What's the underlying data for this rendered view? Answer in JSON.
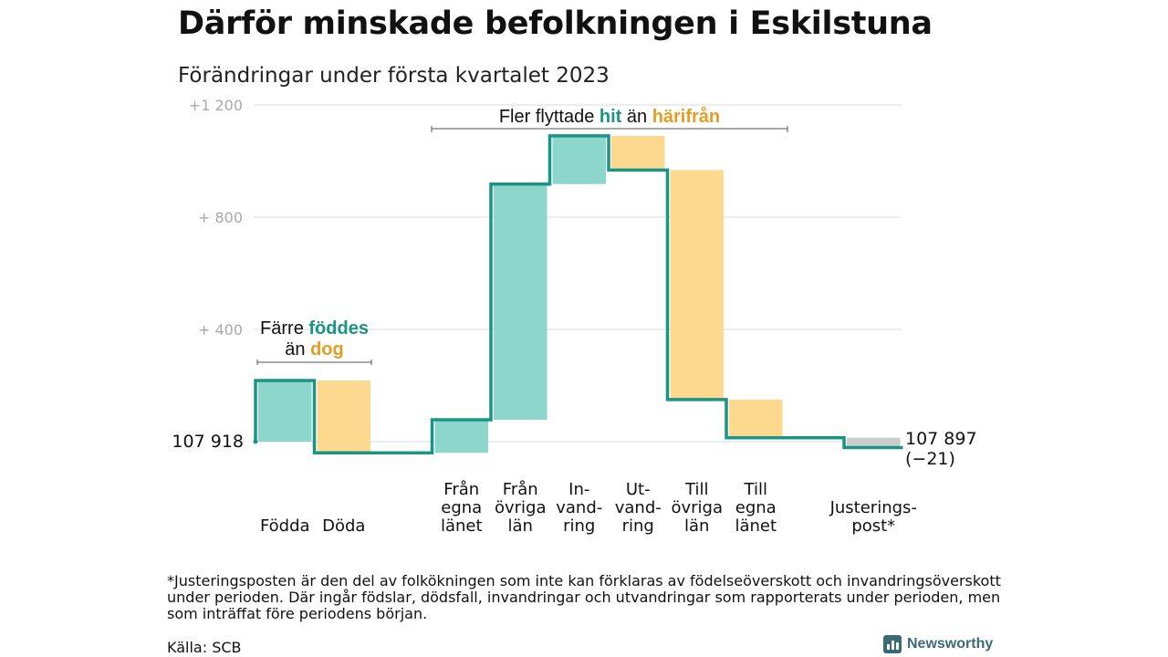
{
  "title": "Därför minskade befolkningen i Eskilstuna",
  "subtitle": "Förändringar under första kvartalet 2023",
  "colors": {
    "increase": "#8dd6cb",
    "decrease": "#fcd98f",
    "adjustment": "#cccccc",
    "line": "#1a9485",
    "hit": "#1a9485",
    "harifran": "#e89c22",
    "grid": "#e2e2e2",
    "tick": "#a9a9a9"
  },
  "chart_data": {
    "type": "waterfall",
    "start": {
      "value": 107918,
      "label": "107 918"
    },
    "end": {
      "value": 107897,
      "label": "107 897",
      "change_label": "(−21)"
    },
    "ylim": [
      -40,
      1200
    ],
    "yticks": [
      {
        "value": 400,
        "label": "+ 400"
      },
      {
        "value": 800,
        "label": "+ 800"
      },
      {
        "value": 1200,
        "label": "+1 200"
      }
    ],
    "steps": [
      {
        "lines": [
          "Födda"
        ],
        "delta": 218,
        "kind": "increase"
      },
      {
        "lines": [
          "Döda"
        ],
        "delta": -258,
        "kind": "decrease"
      },
      {
        "lines": [
          "Från",
          "egna",
          "länet"
        ],
        "delta": 118,
        "kind": "increase"
      },
      {
        "lines": [
          "Från",
          "övriga",
          "län"
        ],
        "delta": 840,
        "kind": "increase"
      },
      {
        "lines": [
          "In-",
          "vand-",
          "ring"
        ],
        "delta": 172,
        "kind": "increase"
      },
      {
        "lines": [
          "Ut-",
          "vand-",
          "ring"
        ],
        "delta": -122,
        "kind": "decrease"
      },
      {
        "lines": [
          "Till",
          "övriga",
          "län"
        ],
        "delta": -818,
        "kind": "decrease"
      },
      {
        "lines": [
          "Till",
          "egna",
          "länet"
        ],
        "delta": -136,
        "kind": "decrease"
      },
      {
        "lines": [
          "Justerings-",
          "post*"
        ],
        "delta": -35,
        "kind": "adjustment"
      }
    ],
    "annotations": [
      {
        "parts": [
          {
            "text": "Färre ",
            "style": "plain"
          },
          {
            "text": "föddes",
            "style": "hit"
          }
        ],
        "line2": [
          {
            "text": "än ",
            "style": "plain"
          },
          {
            "text": "dog",
            "style": "harifran"
          }
        ],
        "span": [
          0,
          1
        ]
      },
      {
        "parts": [
          {
            "text": "Fler flyttade ",
            "style": "plain"
          },
          {
            "text": "hit",
            "style": "hit"
          },
          {
            "text": " än ",
            "style": "plain"
          },
          {
            "text": "härifrån",
            "style": "harifran"
          }
        ],
        "span": [
          2,
          7
        ]
      }
    ]
  },
  "footnote": "*Justeringsposten är den del av folkökningen som inte kan förklaras av födelseöverskott och invandringsöverskott under perioden. Där ingår födslar, dödsfall, invandringar och utvandringar som rapporterats under perioden, men som inträffat före periodens början.",
  "source": "Källa: SCB",
  "logo": {
    "text": "Newsworthy",
    "icon": "bar-chart-icon"
  }
}
